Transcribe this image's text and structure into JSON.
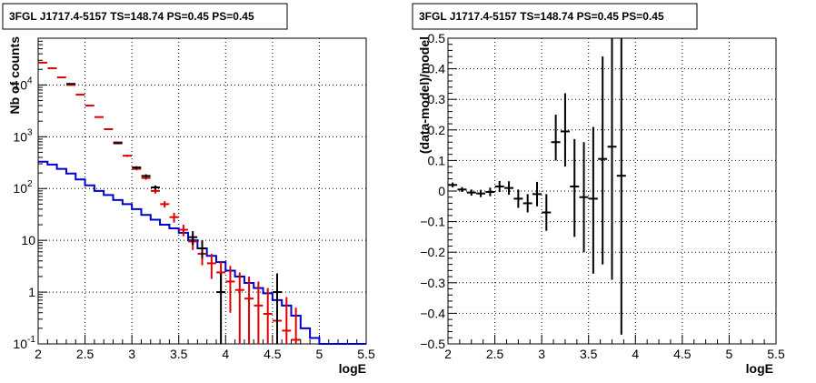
{
  "chart_data": [
    {
      "type": "histogram",
      "title": "3FGL J1717.4-5157 TS=148.74 PS=0.45 PS=0.45",
      "xlabel": "logE",
      "ylabel": "Nb of counts",
      "xlim": [
        2,
        5.5
      ],
      "ylim": [
        0.1,
        80000
      ],
      "yscale": "log",
      "grid": true,
      "x_ticks": [
        {
          "v": 2,
          "label": "2"
        },
        {
          "v": 2.5,
          "label": "2.5"
        },
        {
          "v": 3,
          "label": "3"
        },
        {
          "v": 3.5,
          "label": "3.5"
        },
        {
          "v": 4,
          "label": "4"
        },
        {
          "v": 4.5,
          "label": "4.5"
        },
        {
          "v": 5,
          "label": "5"
        },
        {
          "v": 5.5,
          "label": "5.5"
        }
      ],
      "y_ticks": [
        {
          "v": 0.1,
          "label": "10",
          "sup": "-1"
        },
        {
          "v": 1,
          "label": "1",
          "sup": ""
        },
        {
          "v": 10,
          "label": "10",
          "sup": ""
        },
        {
          "v": 100,
          "label": "10",
          "sup": "2"
        },
        {
          "v": 1000,
          "label": "10",
          "sup": "3"
        },
        {
          "v": 10000,
          "label": "10",
          "sup": "4"
        }
      ],
      "series": [
        {
          "kind": "step",
          "color": "#0000cc",
          "x_edges": [
            2.0,
            2.1,
            2.2,
            2.3,
            2.4,
            2.5,
            2.6,
            2.7,
            2.8,
            2.9,
            3.0,
            3.1,
            3.2,
            3.3,
            3.4,
            3.5,
            3.6,
            3.7,
            3.8,
            3.9,
            4.0,
            4.1,
            4.2,
            4.3,
            4.4,
            4.5,
            4.6,
            4.7,
            4.8,
            4.9,
            5.0,
            5.1,
            5.2,
            5.3,
            5.4,
            5.5
          ],
          "values": [
            330,
            290,
            240,
            195,
            150,
            115,
            90,
            75,
            60,
            50,
            40,
            31,
            25,
            20,
            17,
            14,
            10,
            7,
            5,
            3.8,
            2.6,
            2.0,
            1.5,
            1.2,
            0.95,
            0.7,
            0.55,
            0.35,
            0.2,
            0.13,
            0.1,
            0.1,
            0.1,
            0.1,
            0.1
          ]
        },
        {
          "kind": "points",
          "color": "#dd0000",
          "x": [
            2.05,
            2.15,
            2.25,
            2.35,
            2.45,
            2.55,
            2.65,
            2.75,
            2.85,
            2.95,
            3.05,
            3.15,
            3.25,
            3.35,
            3.45,
            3.55,
            3.65,
            3.75,
            3.85,
            3.95,
            4.05,
            4.15,
            4.25,
            4.35,
            4.45,
            4.55,
            4.65,
            4.75
          ],
          "y": [
            27000,
            21000,
            14000,
            10000,
            6500,
            4000,
            2400,
            1400,
            780,
            430,
            240,
            160,
            90,
            50,
            28,
            16,
            9.5,
            5.5,
            3.6,
            2.4,
            1.6,
            1.1,
            0.75,
            0.55,
            0.38,
            0.28,
            0.18,
            0.12
          ],
          "y_low": [
            26800,
            20800,
            13800,
            9850,
            6400,
            3930,
            2350,
            1360,
            750,
            410,
            225,
            148,
            80,
            43,
            22,
            12,
            6.5,
            3.3,
            1.8,
            0.9,
            0.4,
            0.1,
            0.1,
            0.1,
            0.1,
            0.1,
            0.1,
            0.1
          ],
          "y_high": [
            27200,
            21200,
            14200,
            10150,
            6600,
            4070,
            2450,
            1440,
            810,
            450,
            255,
            172,
            100,
            57,
            34,
            20,
            12.5,
            7.7,
            5.5,
            4.0,
            3.2,
            2.4,
            2.0,
            1.6,
            1.2,
            1.0,
            0.8,
            0.5
          ]
        },
        {
          "kind": "points",
          "color": "#000000",
          "x": [
            2.35,
            2.85,
            3.05,
            3.15,
            3.25,
            3.65,
            3.75,
            3.95,
            4.55
          ],
          "y": [
            10500,
            750,
            255,
            175,
            105,
            11.5,
            7,
            1,
            1
          ],
          "y_low": [
            10300,
            720,
            240,
            162,
            95,
            8.2,
            4.5,
            0.1,
            0.1
          ],
          "y_high": [
            10700,
            780,
            270,
            188,
            115,
            15,
            10,
            2.3,
            2.3
          ]
        }
      ]
    },
    {
      "type": "scatter",
      "title": "3FGL J1717.4-5157 TS=148.74 PS=0.45 PS=0.45",
      "xlabel": "logE",
      "ylabel": "(data-model)/model",
      "xlim": [
        2,
        5.5
      ],
      "ylim": [
        -0.5,
        0.5
      ],
      "grid": true,
      "x_ticks": [
        {
          "v": 2,
          "label": "2"
        },
        {
          "v": 2.5,
          "label": "2.5"
        },
        {
          "v": 3,
          "label": "3"
        },
        {
          "v": 3.5,
          "label": "3.5"
        },
        {
          "v": 4,
          "label": "4"
        },
        {
          "v": 4.5,
          "label": "4.5"
        },
        {
          "v": 5,
          "label": "5"
        },
        {
          "v": 5.5,
          "label": "5.5"
        }
      ],
      "y_ticks": [
        {
          "v": -0.5,
          "label": "−0.5"
        },
        {
          "v": -0.4,
          "label": "−0.4"
        },
        {
          "v": -0.3,
          "label": "−0.3"
        },
        {
          "v": -0.2,
          "label": "−0.2"
        },
        {
          "v": -0.1,
          "label": "−0.1"
        },
        {
          "v": 0,
          "label": "0"
        },
        {
          "v": 0.1,
          "label": "0.1"
        },
        {
          "v": 0.2,
          "label": "0.2"
        },
        {
          "v": 0.3,
          "label": "0.3"
        },
        {
          "v": 0.4,
          "label": "0.4"
        },
        {
          "v": 0.5,
          "label": "0.5"
        }
      ],
      "series": [
        {
          "kind": "points",
          "color": "#000000",
          "x": [
            2.05,
            2.15,
            2.25,
            2.35,
            2.45,
            2.55,
            2.65,
            2.75,
            2.85,
            2.95,
            3.05,
            3.15,
            3.25,
            3.35,
            3.45,
            3.55,
            3.65,
            3.75,
            3.85
          ],
          "y": [
            0.02,
            0.005,
            -0.005,
            -0.008,
            -0.003,
            0.015,
            0.01,
            -0.025,
            -0.04,
            -0.01,
            -0.07,
            0.16,
            0.195,
            0.015,
            -0.02,
            -0.025,
            0.105,
            0.145,
            0.05
          ],
          "y_low": [
            0.012,
            -0.003,
            -0.015,
            -0.02,
            -0.017,
            -0.003,
            -0.012,
            -0.055,
            -0.07,
            -0.05,
            -0.13,
            0.1,
            0.08,
            -0.15,
            -0.2,
            -0.27,
            -0.24,
            -0.29,
            -0.47
          ],
          "y_high": [
            0.028,
            0.013,
            0.005,
            0.004,
            0.011,
            0.033,
            0.032,
            0.005,
            -0.01,
            0.03,
            -0.01,
            0.25,
            0.32,
            0.17,
            0.16,
            0.21,
            0.44,
            0.5,
            0.5
          ]
        }
      ]
    }
  ]
}
